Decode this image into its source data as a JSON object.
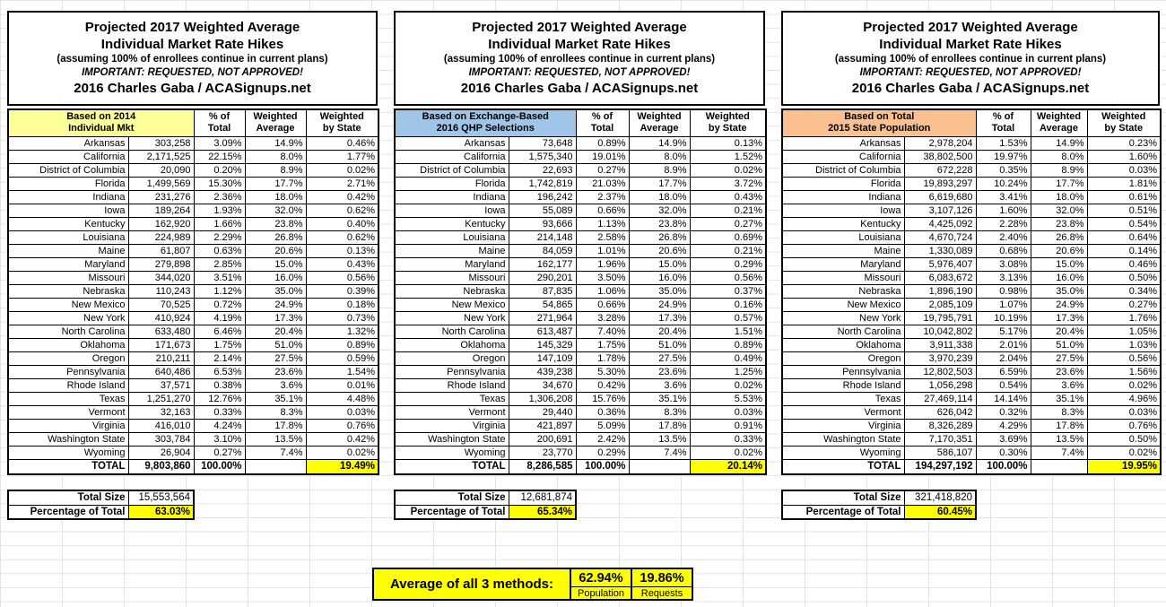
{
  "title": {
    "line1": "Projected 2017 Weighted Average",
    "line2": "Individual Market Rate Hikes",
    "line3": "(assuming 100% of enrollees continue in current plans)",
    "line4": "IMPORTANT: REQUESTED, NOT APPROVED!",
    "line5": "2016 Charles Gaba / ACASignups.net"
  },
  "columns": {
    "pct_of_total": "% of\nTotal",
    "weighted_average": "Weighted\nAverage",
    "weighted_by_state": "Weighted\nby State"
  },
  "footer_labels": {
    "total_size": "Total Size",
    "percentage_of_total": "Percentage of Total"
  },
  "colors": {
    "highlight_yellow": "#FFFF00",
    "basis_yellow": "#FFFF99",
    "basis_blue": "#9FC5E8",
    "basis_orange": "#FAC090"
  },
  "tables": [
    {
      "basis_label": "Based on 2014\nIndividual Mkt",
      "header_color": "#FFFF99",
      "rows": [
        [
          "Arkansas",
          "303,258",
          "3.09%",
          "14.9%",
          "0.46%"
        ],
        [
          "California",
          "2,171,525",
          "22.15%",
          "8.0%",
          "1.77%"
        ],
        [
          "District of Columbia",
          "20,090",
          "0.20%",
          "8.9%",
          "0.02%"
        ],
        [
          "Florida",
          "1,499,569",
          "15.30%",
          "17.7%",
          "2.71%"
        ],
        [
          "Indiana",
          "231,276",
          "2.36%",
          "18.0%",
          "0.42%"
        ],
        [
          "Iowa",
          "189,264",
          "1.93%",
          "32.0%",
          "0.62%"
        ],
        [
          "Kentucky",
          "162,920",
          "1.66%",
          "23.8%",
          "0.40%"
        ],
        [
          "Louisiana",
          "224,989",
          "2.29%",
          "26.8%",
          "0.62%"
        ],
        [
          "Maine",
          "61,807",
          "0.63%",
          "20.6%",
          "0.13%"
        ],
        [
          "Maryland",
          "279,898",
          "2.85%",
          "15.0%",
          "0.43%"
        ],
        [
          "Missouri",
          "344,020",
          "3.51%",
          "16.0%",
          "0.56%"
        ],
        [
          "Nebraska",
          "110,243",
          "1.12%",
          "35.0%",
          "0.39%"
        ],
        [
          "New Mexico",
          "70,525",
          "0.72%",
          "24.9%",
          "0.18%"
        ],
        [
          "New York",
          "410,924",
          "4.19%",
          "17.3%",
          "0.73%"
        ],
        [
          "North Carolina",
          "633,480",
          "6.46%",
          "20.4%",
          "1.32%"
        ],
        [
          "Oklahoma",
          "171,673",
          "1.75%",
          "51.0%",
          "0.89%"
        ],
        [
          "Oregon",
          "210,211",
          "2.14%",
          "27.5%",
          "0.59%"
        ],
        [
          "Pennsylvania",
          "640,486",
          "6.53%",
          "23.6%",
          "1.54%"
        ],
        [
          "Rhode Island",
          "37,571",
          "0.38%",
          "3.6%",
          "0.01%"
        ],
        [
          "Texas",
          "1,251,270",
          "12.76%",
          "35.1%",
          "4.48%"
        ],
        [
          "Vermont",
          "32,163",
          "0.33%",
          "8.3%",
          "0.03%"
        ],
        [
          "Virginia",
          "416,010",
          "4.24%",
          "17.8%",
          "0.76%"
        ],
        [
          "Washington State",
          "303,784",
          "3.10%",
          "13.5%",
          "0.42%"
        ],
        [
          "Wyoming",
          "26,904",
          "0.27%",
          "7.4%",
          "0.02%"
        ]
      ],
      "total_row": [
        "TOTAL",
        "9,803,860",
        "100.00%",
        "",
        "19.49%"
      ],
      "total_size": "15,553,564",
      "percentage_of_total": "63.03%"
    },
    {
      "basis_label": "Based on Exchange-Based\n2016 QHP Selections",
      "header_color": "#9FC5E8",
      "rows": [
        [
          "Arkansas",
          "73,648",
          "0.89%",
          "14.9%",
          "0.13%"
        ],
        [
          "California",
          "1,575,340",
          "19.01%",
          "8.0%",
          "1.52%"
        ],
        [
          "District of Columbia",
          "22,693",
          "0.27%",
          "8.9%",
          "0.02%"
        ],
        [
          "Florida",
          "1,742,819",
          "21.03%",
          "17.7%",
          "3.72%"
        ],
        [
          "Indiana",
          "196,242",
          "2.37%",
          "18.0%",
          "0.43%"
        ],
        [
          "Iowa",
          "55,089",
          "0.66%",
          "32.0%",
          "0.21%"
        ],
        [
          "Kentucky",
          "93,666",
          "1.13%",
          "23.8%",
          "0.27%"
        ],
        [
          "Louisiana",
          "214,148",
          "2.58%",
          "26.8%",
          "0.69%"
        ],
        [
          "Maine",
          "84,059",
          "1.01%",
          "20.6%",
          "0.21%"
        ],
        [
          "Maryland",
          "162,177",
          "1.96%",
          "15.0%",
          "0.29%"
        ],
        [
          "Missouri",
          "290,201",
          "3.50%",
          "16.0%",
          "0.56%"
        ],
        [
          "Nebraska",
          "87,835",
          "1.06%",
          "35.0%",
          "0.37%"
        ],
        [
          "New Mexico",
          "54,865",
          "0.66%",
          "24.9%",
          "0.16%"
        ],
        [
          "New York",
          "271,964",
          "3.28%",
          "17.3%",
          "0.57%"
        ],
        [
          "North Carolina",
          "613,487",
          "7.40%",
          "20.4%",
          "1.51%"
        ],
        [
          "Oklahoma",
          "145,329",
          "1.75%",
          "51.0%",
          "0.89%"
        ],
        [
          "Oregon",
          "147,109",
          "1.78%",
          "27.5%",
          "0.49%"
        ],
        [
          "Pennsylvania",
          "439,238",
          "5.30%",
          "23.6%",
          "1.25%"
        ],
        [
          "Rhode Island",
          "34,670",
          "0.42%",
          "3.6%",
          "0.02%"
        ],
        [
          "Texas",
          "1,306,208",
          "15.76%",
          "35.1%",
          "5.53%"
        ],
        [
          "Vermont",
          "29,440",
          "0.36%",
          "8.3%",
          "0.03%"
        ],
        [
          "Virginia",
          "421,897",
          "5.09%",
          "17.8%",
          "0.91%"
        ],
        [
          "Washington State",
          "200,691",
          "2.42%",
          "13.5%",
          "0.33%"
        ],
        [
          "Wyoming",
          "23,770",
          "0.29%",
          "7.4%",
          "0.02%"
        ]
      ],
      "total_row": [
        "TOTAL",
        "8,286,585",
        "100.00%",
        "",
        "20.14%"
      ],
      "total_size": "12,681,874",
      "percentage_of_total": "65.34%"
    },
    {
      "basis_label": "Based on Total\n2015 State Population",
      "header_color": "#FAC090",
      "rows": [
        [
          "Arkansas",
          "2,978,204",
          "1.53%",
          "14.9%",
          "0.23%"
        ],
        [
          "California",
          "38,802,500",
          "19.97%",
          "8.0%",
          "1.60%"
        ],
        [
          "District of Columbia",
          "672,228",
          "0.35%",
          "8.9%",
          "0.03%"
        ],
        [
          "Florida",
          "19,893,297",
          "10.24%",
          "17.7%",
          "1.81%"
        ],
        [
          "Indiana",
          "6,619,680",
          "3.41%",
          "18.0%",
          "0.61%"
        ],
        [
          "Iowa",
          "3,107,126",
          "1.60%",
          "32.0%",
          "0.51%"
        ],
        [
          "Kentucky",
          "4,425,092",
          "2.28%",
          "23.8%",
          "0.54%"
        ],
        [
          "Louisiana",
          "4,670,724",
          "2.40%",
          "26.8%",
          "0.64%"
        ],
        [
          "Maine",
          "1,330,089",
          "0.68%",
          "20.6%",
          "0.14%"
        ],
        [
          "Maryland",
          "5,976,407",
          "3.08%",
          "15.0%",
          "0.46%"
        ],
        [
          "Missouri",
          "6,083,672",
          "3.13%",
          "16.0%",
          "0.50%"
        ],
        [
          "Nebraska",
          "1,896,190",
          "0.98%",
          "35.0%",
          "0.34%"
        ],
        [
          "New Mexico",
          "2,085,109",
          "1.07%",
          "24.9%",
          "0.27%"
        ],
        [
          "New York",
          "19,795,791",
          "10.19%",
          "17.3%",
          "1.76%"
        ],
        [
          "North Carolina",
          "10,042,802",
          "5.17%",
          "20.4%",
          "1.05%"
        ],
        [
          "Oklahoma",
          "3,911,338",
          "2.01%",
          "51.0%",
          "1.03%"
        ],
        [
          "Oregon",
          "3,970,239",
          "2.04%",
          "27.5%",
          "0.56%"
        ],
        [
          "Pennsylvania",
          "12,802,503",
          "6.59%",
          "23.6%",
          "1.56%"
        ],
        [
          "Rhode Island",
          "1,056,298",
          "0.54%",
          "3.6%",
          "0.02%"
        ],
        [
          "Texas",
          "27,469,114",
          "14.14%",
          "35.1%",
          "4.96%"
        ],
        [
          "Vermont",
          "626,042",
          "0.32%",
          "8.3%",
          "0.03%"
        ],
        [
          "Virginia",
          "8,326,289",
          "4.29%",
          "17.8%",
          "0.76%"
        ],
        [
          "Washington State",
          "7,170,351",
          "3.69%",
          "13.5%",
          "0.50%"
        ],
        [
          "Wyoming",
          "586,107",
          "0.30%",
          "7.4%",
          "0.02%"
        ]
      ],
      "total_row": [
        "TOTAL",
        "194,297,192",
        "100.00%",
        "",
        "19.95%"
      ],
      "total_size": "321,418,820",
      "percentage_of_total": "60.45%"
    }
  ],
  "summary": {
    "label": "Average of all 3 methods:",
    "cells": [
      {
        "value": "62.94%",
        "caption": "Population"
      },
      {
        "value": "19.86%",
        "caption": "Requests"
      }
    ]
  }
}
